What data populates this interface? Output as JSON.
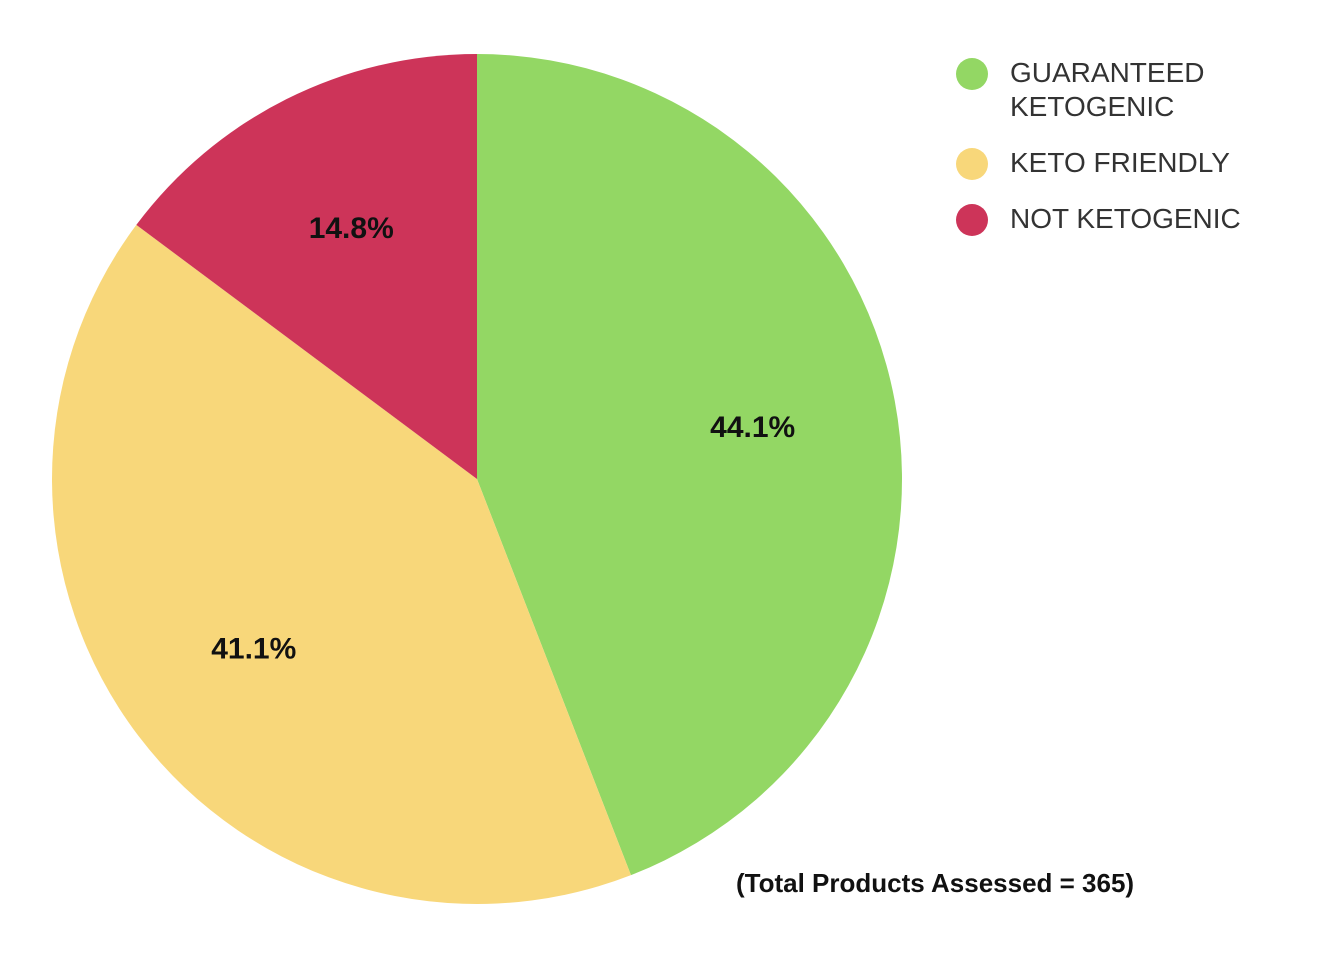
{
  "chart_data": {
    "type": "pie",
    "slices": [
      {
        "label": "GUARANTEED KETOGENIC",
        "value": 44.1,
        "display": "44.1%",
        "color": "#93d764"
      },
      {
        "label": "KETO FRIENDLY",
        "value": 41.1,
        "display": "41.1%",
        "color": "#f8d77a"
      },
      {
        "label": "NOT KETOGENIC",
        "value": 14.8,
        "display": "14.8%",
        "color": "#cd3459"
      }
    ],
    "start_angle": "12 o'clock",
    "direction": "clockwise",
    "legend_position": "top-right",
    "note": "(Total Products Assessed = 365)"
  }
}
